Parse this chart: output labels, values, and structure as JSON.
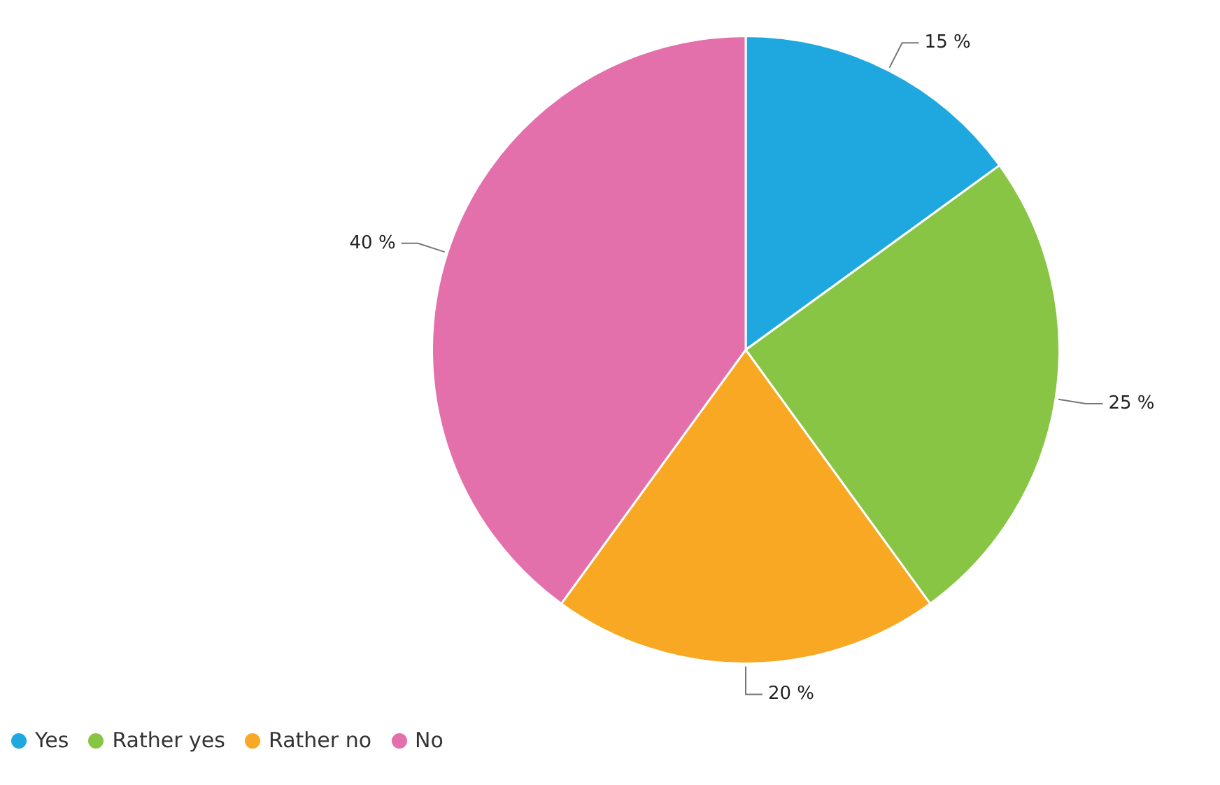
{
  "chart_data": {
    "type": "pie",
    "categories": [
      "Yes",
      "Rather yes",
      "Rather no",
      "No"
    ],
    "values": [
      15,
      25,
      20,
      40
    ],
    "colors": [
      "#1fa8e0",
      "#88c545",
      "#f8a823",
      "#e36fab"
    ],
    "value_labels": [
      "15 %",
      "25 %",
      "20 %",
      "40 %"
    ],
    "legend": "bottom left"
  }
}
